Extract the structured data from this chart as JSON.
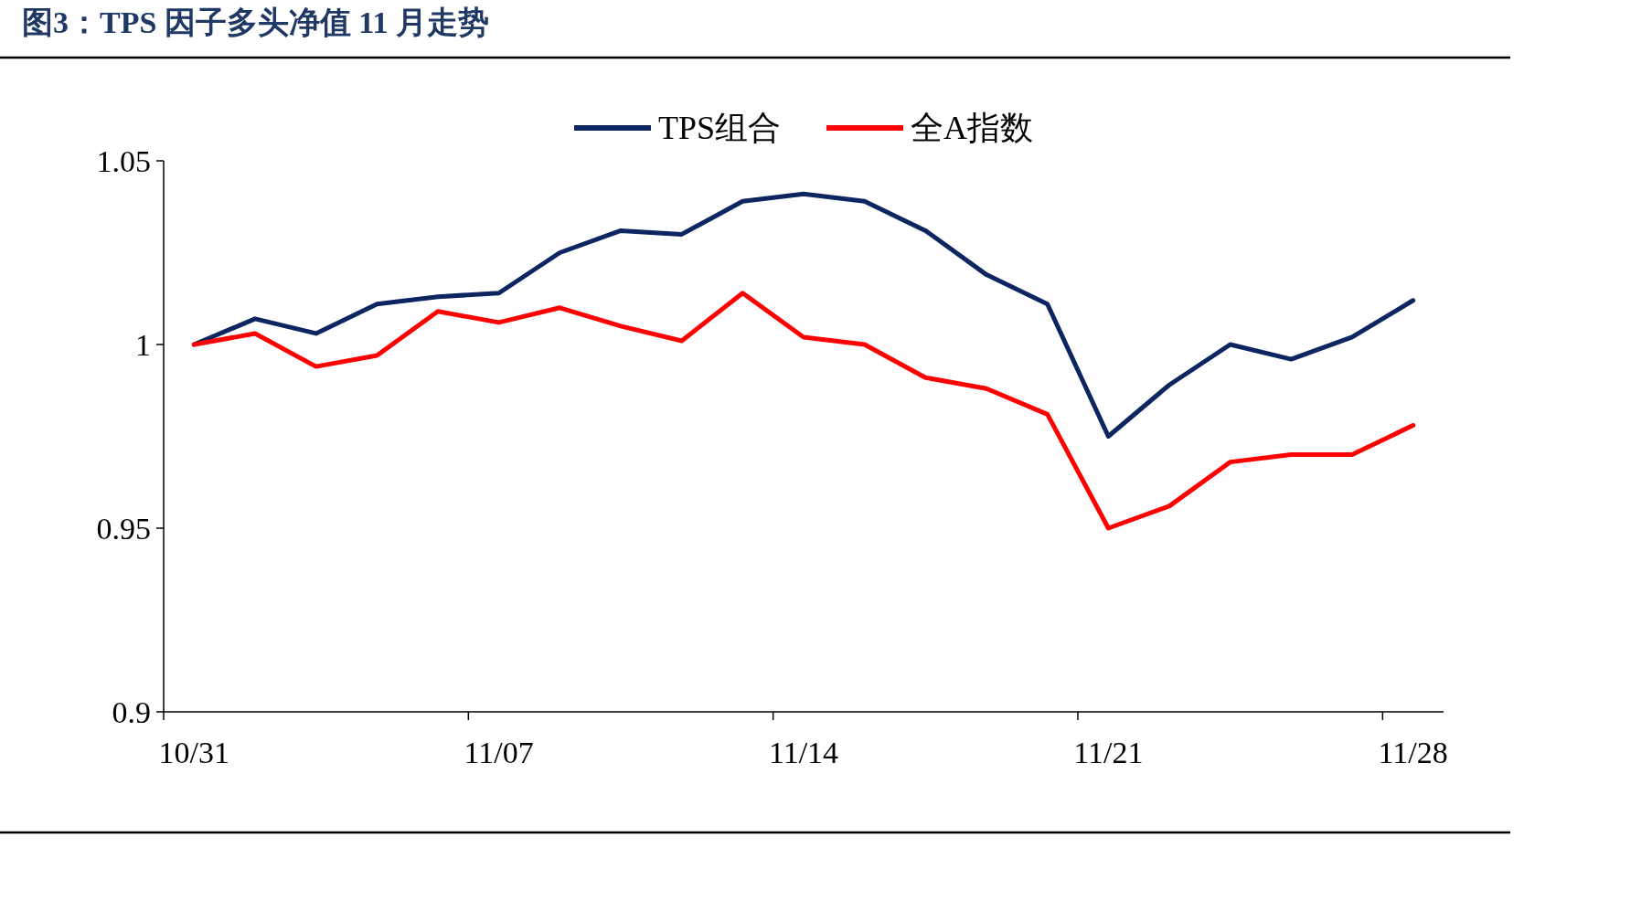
{
  "chart_data": {
    "type": "line",
    "title": "图3：TPS 因子多头净值 11 月走势",
    "categories": [
      "10/31",
      null,
      null,
      null,
      null,
      "11/07",
      null,
      null,
      null,
      null,
      "11/14",
      null,
      null,
      null,
      null,
      "11/21",
      null,
      null,
      null,
      null,
      "11/28"
    ],
    "series": [
      {
        "name": "TPS组合",
        "color": "#0d2560",
        "values": [
          1.0,
          1.007,
          1.003,
          1.011,
          1.013,
          1.014,
          1.025,
          1.031,
          1.03,
          1.039,
          1.041,
          1.039,
          1.031,
          1.019,
          1.011,
          0.975,
          0.989,
          1.0,
          0.996,
          1.002,
          1.012
        ]
      },
      {
        "name": "全A指数",
        "color": "#ff0000",
        "values": [
          1.0,
          1.003,
          0.994,
          0.997,
          1.009,
          1.006,
          1.01,
          1.005,
          1.001,
          1.014,
          1.002,
          1.0,
          0.991,
          0.988,
          0.981,
          0.95,
          0.956,
          0.968,
          0.97,
          0.97,
          0.978
        ]
      }
    ],
    "ylim": [
      0.9,
      1.05
    ],
    "yticks": [
      0.9,
      0.95,
      1,
      1.05
    ],
    "legend": "top",
    "grid": false,
    "marker": "none",
    "line_style": "solid"
  }
}
